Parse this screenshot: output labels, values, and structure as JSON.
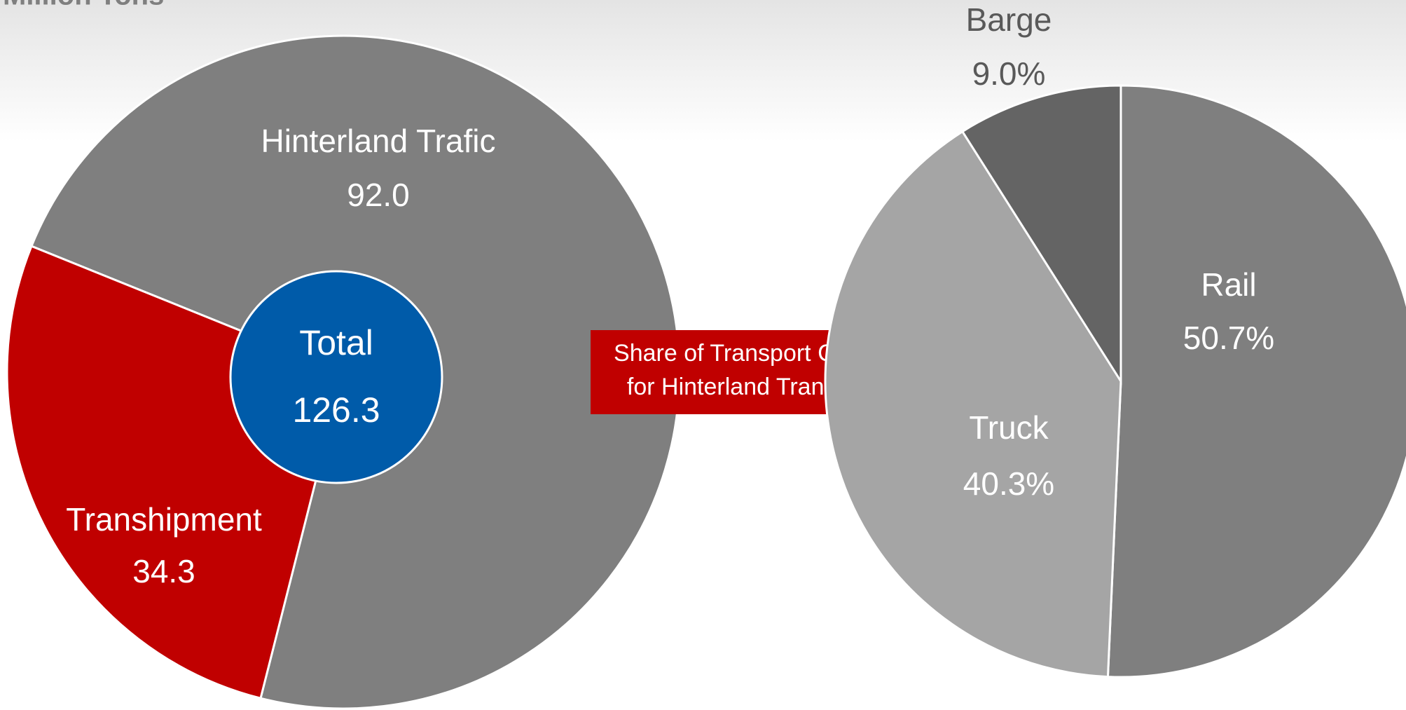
{
  "chart_data": [
    {
      "type": "pie",
      "subtitle": "Million Tons",
      "categories": [
        "Hinterland Trafic",
        "Transhipment"
      ],
      "values": [
        92.0,
        34.3
      ],
      "value_labels": [
        "92.0",
        "34.3"
      ],
      "colors": [
        "#7f7f7f",
        "#c00000"
      ],
      "center_label": "Total",
      "center_value": 126.3,
      "center_color": "#005ba9",
      "annotation": [
        "Share of Transport Carriers",
        "for Hinterland Transports"
      ],
      "annotation_color": "#c00000"
    },
    {
      "type": "pie",
      "categories": [
        "Rail",
        "Truck",
        "Barge"
      ],
      "values": [
        50.7,
        40.3,
        9.0
      ],
      "value_labels": [
        "50.7%",
        "40.3%",
        "9.0%"
      ],
      "colors": [
        "#7f7f7f",
        "#a5a5a5",
        "#646464"
      ]
    }
  ]
}
